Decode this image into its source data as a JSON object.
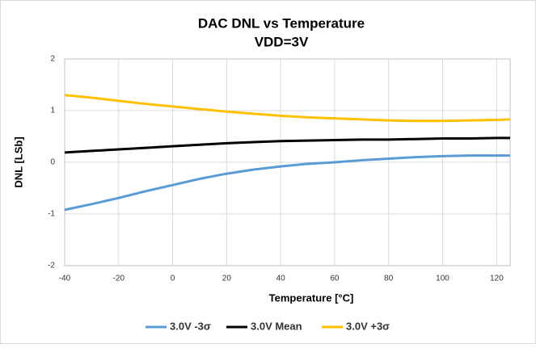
{
  "chart_data": {
    "type": "line",
    "title": "DAC DNL vs Temperature",
    "subtitle": "VDD=3V",
    "x_label": "Temperature [°C]",
    "y_label": "DNL [LSb]",
    "x": [
      -40,
      -30,
      -20,
      -10,
      0,
      10,
      20,
      30,
      40,
      50,
      60,
      70,
      80,
      90,
      100,
      110,
      120,
      125
    ],
    "series": [
      {
        "name": "3.0V -3σ",
        "color": "#5b9bd5",
        "values": [
          -0.92,
          -0.81,
          -0.69,
          -0.56,
          -0.44,
          -0.32,
          -0.22,
          -0.14,
          -0.08,
          -0.03,
          0.0,
          0.04,
          0.07,
          0.1,
          0.12,
          0.13,
          0.13,
          0.13
        ]
      },
      {
        "name": "3.0V Mean",
        "color": "#000000",
        "values": [
          0.19,
          0.22,
          0.25,
          0.28,
          0.31,
          0.34,
          0.37,
          0.39,
          0.41,
          0.42,
          0.43,
          0.44,
          0.44,
          0.45,
          0.46,
          0.46,
          0.47,
          0.47
        ]
      },
      {
        "name": "3.0V +3σ",
        "color": "#ffc000",
        "values": [
          1.3,
          1.25,
          1.19,
          1.13,
          1.08,
          1.03,
          0.98,
          0.94,
          0.9,
          0.87,
          0.85,
          0.83,
          0.81,
          0.8,
          0.8,
          0.81,
          0.82,
          0.83
        ]
      }
    ],
    "xlim": [
      -40,
      125
    ],
    "xticks": [
      -40,
      -20,
      0,
      20,
      40,
      60,
      80,
      100,
      120
    ],
    "ylim": [
      -2,
      2
    ],
    "yticks": [
      -2,
      -1,
      0,
      1,
      2
    ],
    "grid": true,
    "legend": "bottom"
  }
}
